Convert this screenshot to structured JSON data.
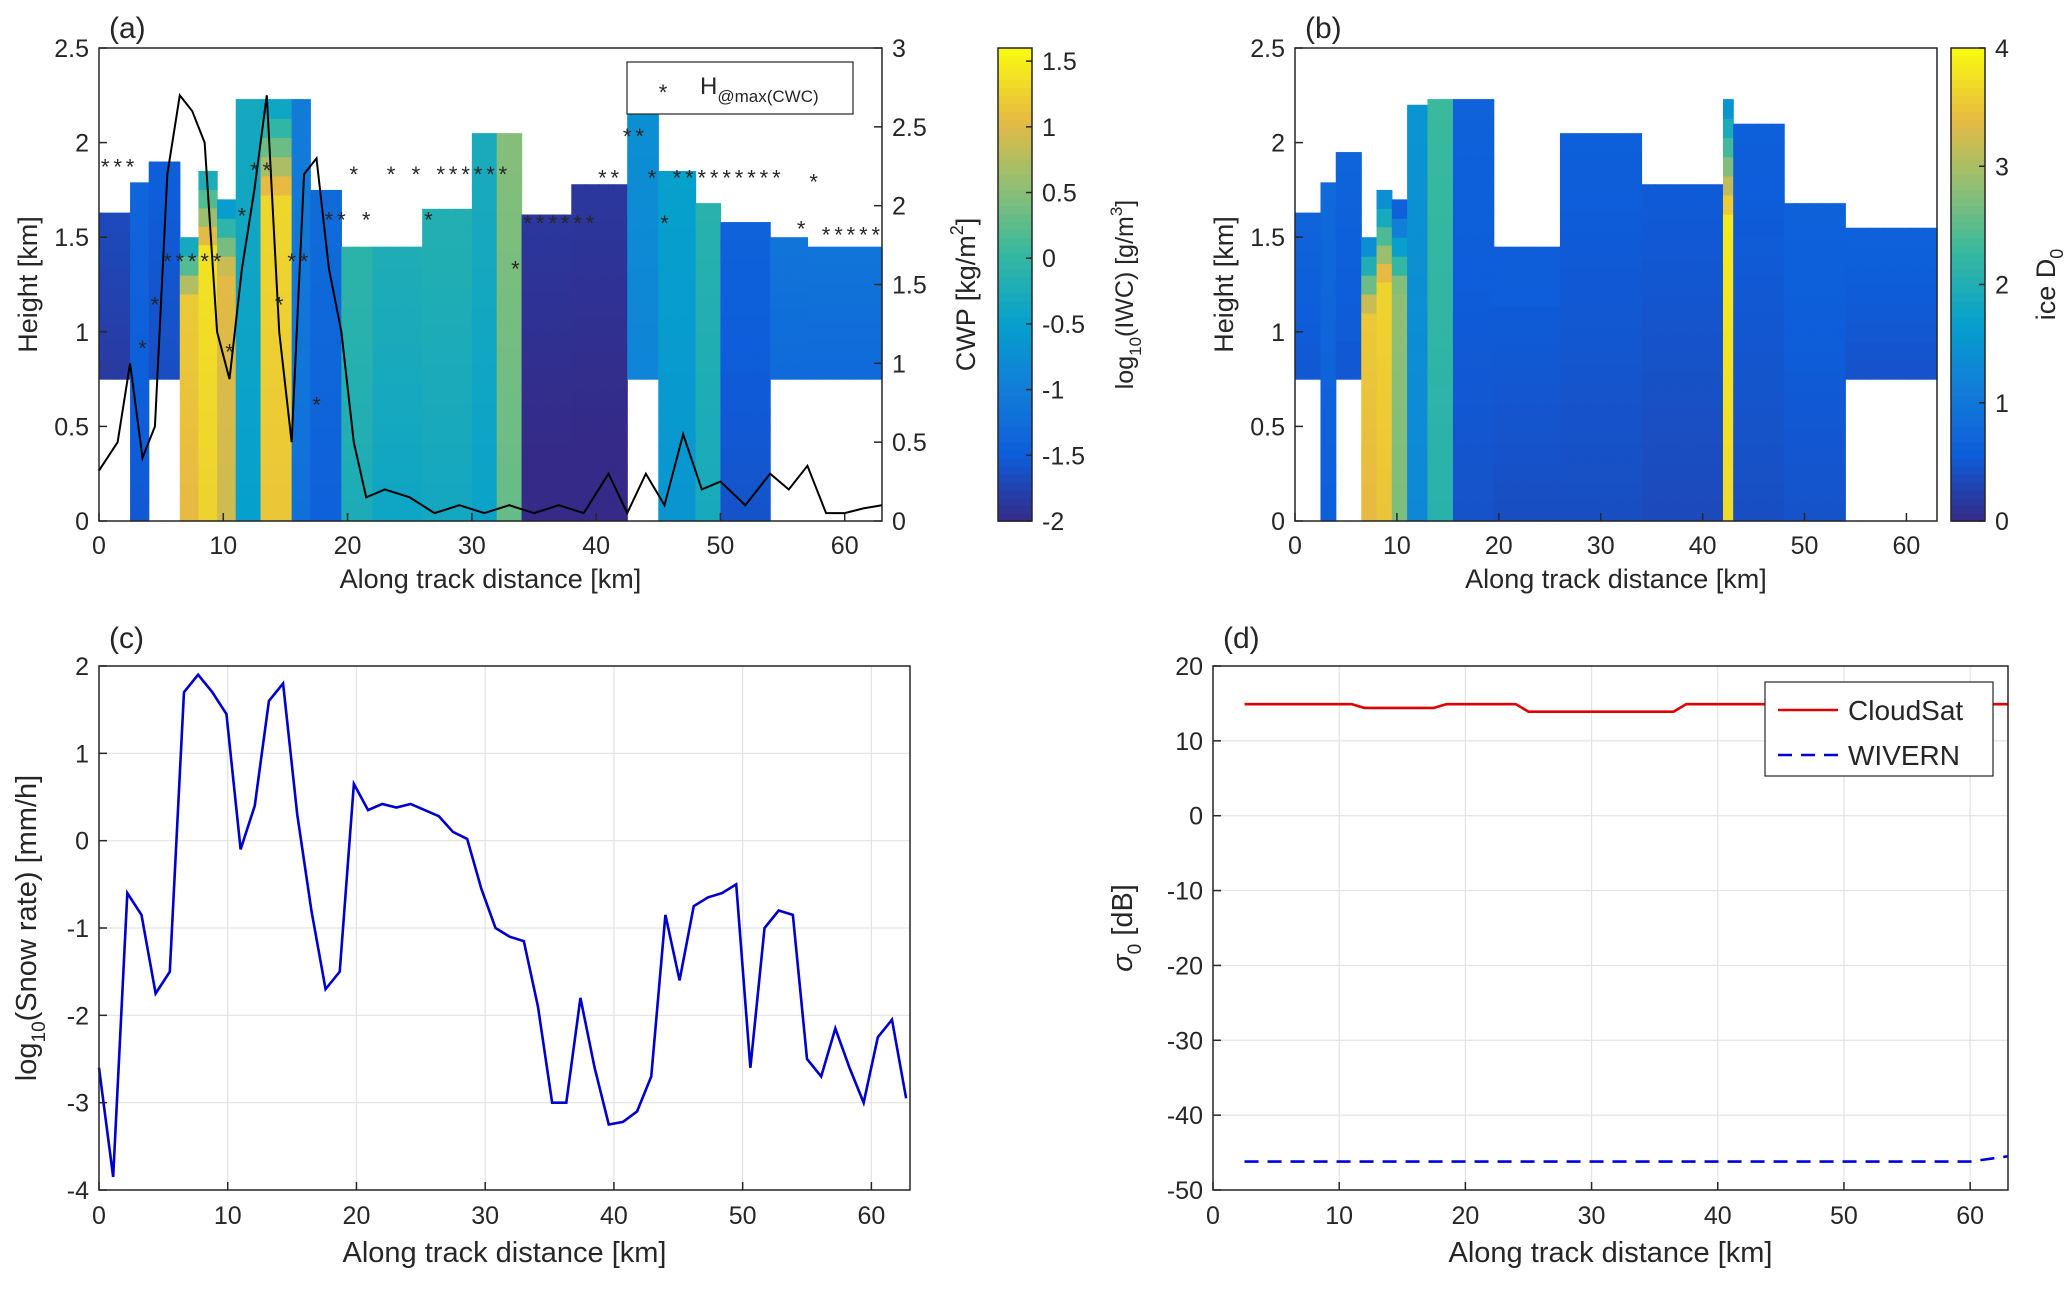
{
  "chart_data": [
    {
      "panel": "(a)",
      "type": "heatmap",
      "xlabel": "Along track distance [km]",
      "ylabel": "Height [km]",
      "y2label": "CWP [kg/m",
      "y2label_sup": "2",
      "y2label_end": "]",
      "colorbar_label": "log",
      "colorbar_label_sub": "10",
      "colorbar_label_mid": "(IWC) [g/m",
      "colorbar_label_sup": "3",
      "colorbar_label_end": "]",
      "xlim": [
        0,
        63
      ],
      "ylim": [
        0,
        2.5
      ],
      "y2lim": [
        0,
        3
      ],
      "clim": [
        -2,
        1.6
      ],
      "xticks": [
        "0",
        "10",
        "20",
        "30",
        "40",
        "50",
        "60"
      ],
      "yticks": [
        "0",
        "0.5",
        "1",
        "1.5",
        "2",
        "2.5"
      ],
      "y2ticks": [
        "0",
        "0.5",
        "1",
        "1.5",
        "2",
        "2.5",
        "3"
      ],
      "cticks": [
        "-2",
        "-1.5",
        "-1",
        "-0.5",
        "0",
        "0.5",
        "1",
        "1.5"
      ],
      "legend": {
        "symbol": "*",
        "text": "H",
        "sub": "@max(CWC)",
        "position": "top-right"
      },
      "columns": [
        {
          "x0": 0,
          "x1": 2.5,
          "top": 1.63,
          "bottom": 0.75,
          "value": -1.75
        },
        {
          "x0": 2.5,
          "x1": 4,
          "top": 1.79,
          "bottom": 0.0,
          "value": -1.45
        },
        {
          "x0": 4,
          "x1": 6.5,
          "top": 1.9,
          "bottom": 0.75,
          "value": -1.55
        },
        {
          "x0": 6.5,
          "x1": 8,
          "top": 1.5,
          "bottom": 0.0,
          "value": 1.15
        },
        {
          "x0": 8,
          "x1": 9.5,
          "top": 1.85,
          "bottom": 0.0,
          "value": 1.35
        },
        {
          "x0": 9.5,
          "x1": 11,
          "top": 1.7,
          "bottom": 0.0,
          "value": 1.0
        },
        {
          "x0": 11,
          "x1": 13,
          "top": 2.23,
          "bottom": 0.0,
          "value": -0.4
        },
        {
          "x0": 13,
          "x1": 15.5,
          "top": 2.23,
          "bottom": 0.0,
          "value": 1.25
        },
        {
          "x0": 15.5,
          "x1": 17,
          "top": 2.23,
          "bottom": 0.0,
          "value": -1.1
        },
        {
          "x0": 17,
          "x1": 19.5,
          "top": 1.75,
          "bottom": 0.0,
          "value": -1.35
        },
        {
          "x0": 19.5,
          "x1": 22,
          "top": 1.45,
          "bottom": 0.0,
          "value": -0.15
        },
        {
          "x0": 22,
          "x1": 26,
          "top": 1.45,
          "bottom": 0.0,
          "value": -0.3
        },
        {
          "x0": 26,
          "x1": 30,
          "top": 1.65,
          "bottom": 0.0,
          "value": -0.25
        },
        {
          "x0": 30,
          "x1": 32,
          "top": 2.05,
          "bottom": 0.0,
          "value": -0.35
        },
        {
          "x0": 32,
          "x1": 34,
          "top": 2.05,
          "bottom": 0.0,
          "value": 0.4
        },
        {
          "x0": 34,
          "x1": 38,
          "top": 1.62,
          "bottom": 0.0,
          "value": -1.95
        },
        {
          "x0": 38,
          "x1": 42.5,
          "top": 1.78,
          "bottom": 0.0,
          "value": -1.95
        },
        {
          "x0": 42.5,
          "x1": 45,
          "top": 2.23,
          "bottom": 0.75,
          "value": -0.8
        },
        {
          "x0": 45,
          "x1": 48,
          "top": 1.85,
          "bottom": 0.0,
          "value": -0.55
        },
        {
          "x0": 48,
          "x1": 50,
          "top": 1.68,
          "bottom": 0.0,
          "value": -0.2
        },
        {
          "x0": 50,
          "x1": 54,
          "top": 1.58,
          "bottom": 0.0,
          "value": -1.5
        },
        {
          "x0": 54,
          "x1": 57,
          "top": 1.5,
          "bottom": 0.75,
          "value": -1.2
        },
        {
          "x0": 57,
          "x1": 63,
          "top": 1.45,
          "bottom": 0.75,
          "value": -1.2
        }
      ],
      "cwp_line": {
        "x": [
          0,
          1.5,
          2.5,
          3.5,
          4.5,
          5.5,
          6.5,
          7.5,
          8.5,
          9.5,
          10.5,
          11.5,
          12.5,
          13.5,
          14.5,
          15.5,
          16.5,
          17.5,
          18.5,
          19.5,
          20.5,
          21.5,
          23,
          25,
          27,
          29,
          31,
          33,
          35,
          37,
          39,
          41,
          42.5,
          44,
          45.5,
          47,
          48.5,
          50,
          52,
          54,
          55.5,
          57,
          58.5,
          60,
          61.5,
          63
        ],
        "y": [
          0.32,
          0.5,
          1.0,
          0.4,
          0.6,
          2.2,
          2.7,
          2.6,
          2.4,
          1.2,
          0.9,
          1.6,
          2.1,
          2.7,
          1.2,
          0.5,
          2.2,
          2.3,
          1.6,
          1.2,
          0.5,
          0.15,
          0.2,
          0.15,
          0.05,
          0.1,
          0.05,
          0.1,
          0.05,
          0.1,
          0.05,
          0.3,
          0.05,
          0.3,
          0.1,
          0.55,
          0.2,
          0.25,
          0.1,
          0.3,
          0.2,
          0.35,
          0.05,
          0.05,
          0.08,
          0.1
        ]
      },
      "markers": {
        "x": [
          0.5,
          1.5,
          2.5,
          3.5,
          4.5,
          5.5,
          6.5,
          7.5,
          8.5,
          9.5,
          10.5,
          11.5,
          12.5,
          13.5,
          14.5,
          15.5,
          16.5,
          17.5,
          18.5,
          19.5,
          20.5,
          21.5,
          23.5,
          25.5,
          26.5,
          27.5,
          28.5,
          29.5,
          30.5,
          31.5,
          32.5,
          33.5,
          34.5,
          35.5,
          36.5,
          37.5,
          38.5,
          39.5,
          40.5,
          41.5,
          42.5,
          43.5,
          44.5,
          45.5,
          46.5,
          47.5,
          48.5,
          49.5,
          50.5,
          51.5,
          52.5,
          53.5,
          54.5,
          56.5,
          57.5,
          58.5,
          59.5,
          60.5,
          61.5,
          62.5
        ],
        "y": [
          1.88,
          1.88,
          1.88,
          0.92,
          1.15,
          1.38,
          1.38,
          1.38,
          1.38,
          1.38,
          0.9,
          1.62,
          1.86,
          1.86,
          1.15,
          1.38,
          1.38,
          0.62,
          1.6,
          1.6,
          1.84,
          1.6,
          1.84,
          1.84,
          1.6,
          1.84,
          1.84,
          1.84,
          1.84,
          1.84,
          1.84,
          1.34,
          1.58,
          1.58,
          1.58,
          1.58,
          1.58,
          1.58,
          1.82,
          1.82,
          2.04,
          2.04,
          1.82,
          1.58,
          1.82,
          1.82,
          1.82,
          1.82,
          1.82,
          1.82,
          1.82,
          1.82,
          1.82,
          1.55,
          1.8,
          1.52,
          1.52,
          1.52,
          1.52,
          1.52
        ]
      }
    },
    {
      "panel": "(b)",
      "type": "heatmap",
      "xlabel": "Along track distance [km]",
      "ylabel": "Height [km]",
      "colorbar_label": "ice D",
      "colorbar_label_sub": "0",
      "xlim": [
        0,
        63
      ],
      "ylim": [
        0,
        2.5
      ],
      "clim": [
        0,
        4
      ],
      "xticks": [
        "0",
        "10",
        "20",
        "30",
        "40",
        "50",
        "60"
      ],
      "yticks": [
        "0",
        "0.5",
        "1",
        "1.5",
        "2",
        "2.5"
      ],
      "cticks": [
        "0",
        "1",
        "2",
        "3",
        "4"
      ],
      "columns": [
        {
          "x0": 0,
          "x1": 2.5,
          "top": 1.63,
          "bottom": 0.75,
          "value": 0.6
        },
        {
          "x0": 2.5,
          "x1": 4,
          "top": 1.79,
          "bottom": 0.0,
          "value": 0.7
        },
        {
          "x0": 4,
          "x1": 6.5,
          "top": 1.95,
          "bottom": 0.75,
          "value": 0.6
        },
        {
          "x0": 6.5,
          "x1": 8,
          "top": 1.5,
          "bottom": 0.0,
          "value": 3.5
        },
        {
          "x0": 8,
          "x1": 9.5,
          "top": 1.75,
          "bottom": 0.0,
          "value": 3.6
        },
        {
          "x0": 9.5,
          "x1": 11,
          "top": 1.7,
          "bottom": 0.0,
          "value": 2.8
        },
        {
          "x0": 11,
          "x1": 13,
          "top": 2.2,
          "bottom": 0.0,
          "value": 1.4
        },
        {
          "x0": 13,
          "x1": 15.5,
          "top": 2.23,
          "bottom": 0.0,
          "value": 2.2
        },
        {
          "x0": 15.5,
          "x1": 19.5,
          "top": 2.23,
          "bottom": 0.0,
          "value": 0.55
        },
        {
          "x0": 19.5,
          "x1": 26,
          "top": 1.45,
          "bottom": 0.0,
          "value": 0.5
        },
        {
          "x0": 26,
          "x1": 34,
          "top": 2.05,
          "bottom": 0.0,
          "value": 0.5
        },
        {
          "x0": 34,
          "x1": 42,
          "top": 1.78,
          "bottom": 0.0,
          "value": 0.45
        },
        {
          "x0": 42,
          "x1": 43,
          "top": 2.23,
          "bottom": 0.0,
          "value": 3.8
        },
        {
          "x0": 43,
          "x1": 48,
          "top": 2.1,
          "bottom": 0.0,
          "value": 0.5
        },
        {
          "x0": 48,
          "x1": 54,
          "top": 1.68,
          "bottom": 0.0,
          "value": 0.55
        },
        {
          "x0": 54,
          "x1": 63,
          "top": 1.55,
          "bottom": 0.75,
          "value": 0.55
        }
      ]
    },
    {
      "panel": "(c)",
      "type": "line",
      "xlabel": "Along track distance [km]",
      "ylabel": "log",
      "ylabel_sub": "10",
      "ylabel_end": "(Snow rate) [mm/h]",
      "xlim": [
        0,
        63
      ],
      "ylim": [
        -4,
        2
      ],
      "xticks": [
        "0",
        "10",
        "20",
        "30",
        "40",
        "50",
        "60"
      ],
      "yticks": [
        "-4",
        "-3",
        "-2",
        "-1",
        "0",
        "1",
        "2"
      ],
      "grid": true,
      "series": [
        {
          "color": "#0000cc",
          "x": [
            0,
            1.1,
            2.2,
            3.3,
            4.4,
            5.5,
            6.6,
            7.7,
            8.8,
            9.9,
            11,
            12.1,
            13.2,
            14.3,
            15.4,
            16.5,
            17.6,
            18.7,
            19.8,
            20.9,
            22,
            23.1,
            24.2,
            25.3,
            26.4,
            27.5,
            28.6,
            29.7,
            30.8,
            31.9,
            33,
            34.1,
            35.2,
            36.3,
            37.4,
            38.5,
            39.6,
            40.7,
            41.8,
            42.9,
            44,
            45.1,
            46.2,
            47.3,
            48.4,
            49.5,
            50.6,
            51.7,
            52.8,
            53.9,
            55,
            56.1,
            57.2,
            58.3,
            59.4,
            60.5,
            61.6,
            62.7
          ],
          "y": [
            -2.6,
            -3.85,
            -0.6,
            -0.85,
            -1.75,
            -1.5,
            1.7,
            1.9,
            1.7,
            1.45,
            -0.1,
            0.4,
            1.6,
            1.8,
            0.3,
            -0.8,
            -1.7,
            -1.5,
            0.65,
            0.35,
            0.42,
            0.38,
            0.42,
            0.35,
            0.28,
            0.1,
            0.02,
            -0.55,
            -1.0,
            -1.1,
            -1.15,
            -1.9,
            -3.0,
            -3.0,
            -1.8,
            -2.6,
            -3.25,
            -3.22,
            -3.1,
            -2.7,
            -0.85,
            -1.6,
            -0.75,
            -0.65,
            -0.6,
            -0.5,
            -2.6,
            -1.0,
            -0.8,
            -0.85,
            -2.5,
            -2.7,
            -2.15,
            -2.6,
            -3.0,
            -2.25,
            -2.05,
            -2.95
          ]
        }
      ]
    },
    {
      "panel": "(d)",
      "type": "line",
      "xlabel": "Along track distance [km]",
      "ylabel": "σ",
      "ylabel_sub": "0",
      "ylabel_end": " [dB]",
      "xlim": [
        0,
        63
      ],
      "ylim": [
        -50,
        20
      ],
      "xticks": [
        "0",
        "10",
        "20",
        "30",
        "40",
        "50",
        "60"
      ],
      "yticks": [
        "-50",
        "-40",
        "-30",
        "-20",
        "-10",
        "0",
        "10",
        "20"
      ],
      "grid": true,
      "legend_position": "top-right",
      "series": [
        {
          "name": "CloudSat",
          "color": "#e00000",
          "dash": "solid",
          "x": [
            2.5,
            11,
            12,
            17.5,
            18.5,
            24,
            25,
            36.5,
            37.5,
            63
          ],
          "y": [
            14.9,
            14.9,
            14.4,
            14.4,
            14.9,
            14.9,
            13.9,
            13.9,
            14.9,
            14.9
          ]
        },
        {
          "name": "WIVERN",
          "color": "#0000dd",
          "dash": "dashed",
          "x": [
            2.5,
            60,
            63
          ],
          "y": [
            -46.2,
            -46.2,
            -45.5
          ]
        }
      ]
    }
  ]
}
